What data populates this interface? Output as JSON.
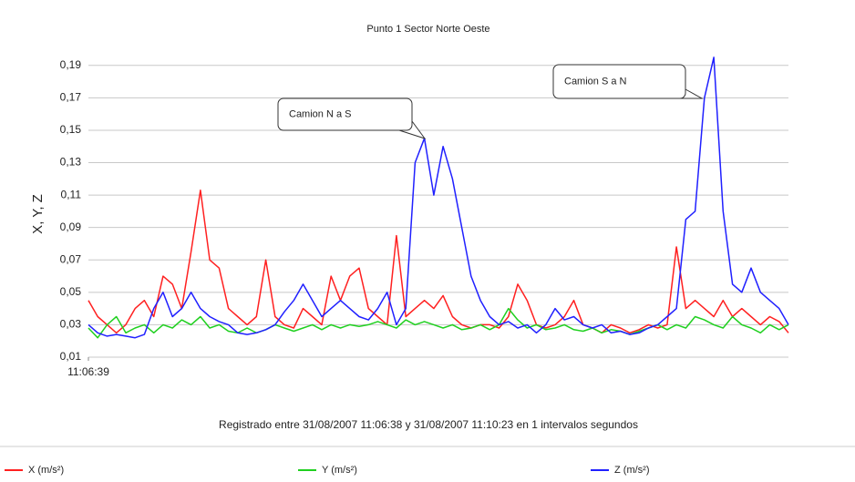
{
  "chart_data": {
    "type": "line",
    "title": "Punto 1 Sector Norte Oeste",
    "ylabel": "X, Y, Z",
    "footer": "Registrado entre 31/08/2007 11:06:38 y 31/08/2007 11:10:23 en 1 intervalos segundos",
    "x": [
      0,
      3,
      6,
      9,
      12,
      15,
      18,
      21,
      24,
      27,
      30,
      33,
      36,
      39,
      42,
      45,
      48,
      51,
      54,
      57,
      60,
      63,
      66,
      69,
      72,
      75,
      78,
      81,
      84,
      87,
      90,
      93,
      96,
      99,
      102,
      105,
      108,
      111,
      114,
      117,
      120,
      123,
      126,
      129,
      132,
      135,
      138,
      141,
      144,
      147,
      150,
      153,
      156,
      159,
      162,
      165,
      168,
      171,
      174,
      177,
      180,
      183,
      186,
      189,
      192,
      195,
      198,
      201,
      204,
      207,
      210,
      213,
      216,
      219,
      222,
      225
    ],
    "xlim": [
      0,
      225
    ],
    "xticks": [
      {
        "value": 0,
        "label": "11:06:39"
      }
    ],
    "ylim": [
      0.01,
      0.2
    ],
    "yticks": [
      {
        "value": 0.01,
        "label": "0,01"
      },
      {
        "value": 0.03,
        "label": "0,03"
      },
      {
        "value": 0.05,
        "label": "0,05"
      },
      {
        "value": 0.07,
        "label": "0,07"
      },
      {
        "value": 0.09,
        "label": "0,09"
      },
      {
        "value": 0.11,
        "label": "0,11"
      },
      {
        "value": 0.13,
        "label": "0,13"
      },
      {
        "value": 0.15,
        "label": "0,15"
      },
      {
        "value": 0.17,
        "label": "0,17"
      },
      {
        "value": 0.19,
        "label": "0,19"
      }
    ],
    "grid": true,
    "legend": "bottom",
    "series": [
      {
        "name": "X (m/s²)",
        "color": "#ff2020",
        "values": [
          0.045,
          0.035,
          0.03,
          0.025,
          0.03,
          0.04,
          0.045,
          0.035,
          0.06,
          0.055,
          0.04,
          0.075,
          0.113,
          0.07,
          0.065,
          0.04,
          0.035,
          0.03,
          0.035,
          0.07,
          0.035,
          0.03,
          0.028,
          0.04,
          0.035,
          0.03,
          0.06,
          0.045,
          0.06,
          0.065,
          0.04,
          0.035,
          0.03,
          0.085,
          0.035,
          0.04,
          0.045,
          0.04,
          0.048,
          0.035,
          0.03,
          0.028,
          0.03,
          0.03,
          0.028,
          0.035,
          0.055,
          0.045,
          0.03,
          0.028,
          0.03,
          0.035,
          0.045,
          0.03,
          0.028,
          0.025,
          0.03,
          0.028,
          0.025,
          0.027,
          0.03,
          0.028,
          0.03,
          0.078,
          0.04,
          0.045,
          0.04,
          0.035,
          0.045,
          0.035,
          0.04,
          0.035,
          0.03,
          0.035,
          0.032,
          0.025
        ]
      },
      {
        "name": "Y (m/s²)",
        "color": "#20d020",
        "values": [
          0.028,
          0.022,
          0.03,
          0.035,
          0.025,
          0.028,
          0.03,
          0.025,
          0.03,
          0.028,
          0.033,
          0.03,
          0.035,
          0.028,
          0.03,
          0.026,
          0.025,
          0.028,
          0.025,
          0.027,
          0.03,
          0.028,
          0.026,
          0.028,
          0.03,
          0.027,
          0.03,
          0.028,
          0.03,
          0.029,
          0.03,
          0.032,
          0.03,
          0.028,
          0.033,
          0.03,
          0.032,
          0.03,
          0.028,
          0.03,
          0.027,
          0.028,
          0.03,
          0.027,
          0.03,
          0.04,
          0.033,
          0.028,
          0.03,
          0.027,
          0.028,
          0.03,
          0.027,
          0.026,
          0.028,
          0.025,
          0.027,
          0.026,
          0.024,
          0.026,
          0.028,
          0.03,
          0.027,
          0.03,
          0.028,
          0.035,
          0.033,
          0.03,
          0.028,
          0.035,
          0.03,
          0.028,
          0.025,
          0.03,
          0.027,
          0.03
        ]
      },
      {
        "name": "Z (m/s²)",
        "color": "#2020ff",
        "values": [
          0.03,
          0.025,
          0.023,
          0.024,
          0.023,
          0.022,
          0.024,
          0.04,
          0.05,
          0.035,
          0.04,
          0.05,
          0.04,
          0.035,
          0.032,
          0.03,
          0.025,
          0.024,
          0.025,
          0.027,
          0.03,
          0.038,
          0.045,
          0.055,
          0.045,
          0.035,
          0.04,
          0.045,
          0.04,
          0.035,
          0.033,
          0.04,
          0.05,
          0.03,
          0.04,
          0.13,
          0.145,
          0.11,
          0.14,
          0.12,
          0.09,
          0.06,
          0.045,
          0.035,
          0.03,
          0.032,
          0.028,
          0.03,
          0.025,
          0.03,
          0.04,
          0.033,
          0.035,
          0.03,
          0.028,
          0.03,
          0.025,
          0.026,
          0.024,
          0.025,
          0.028,
          0.03,
          0.035,
          0.04,
          0.095,
          0.1,
          0.17,
          0.195,
          0.1,
          0.055,
          0.05,
          0.065,
          0.05,
          0.045,
          0.04,
          0.03
        ]
      }
    ],
    "annotations": [
      {
        "text": "Camion N a S"
      },
      {
        "text": "Camion S a N"
      }
    ]
  }
}
